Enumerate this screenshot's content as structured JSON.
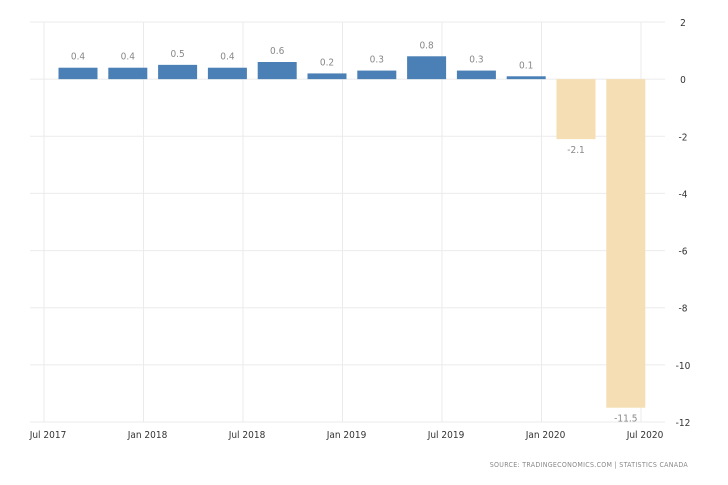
{
  "chart_data": {
    "type": "bar",
    "values": [
      0.4,
      0.4,
      0.5,
      0.4,
      0.6,
      0.2,
      0.3,
      0.8,
      0.3,
      0.1,
      -2.1,
      -11.5
    ],
    "data_labels": [
      "0.4",
      "0.4",
      "0.5",
      "0.4",
      "0.6",
      "0.2",
      "0.3",
      "0.8",
      "0.3",
      "0.1",
      "-2.1",
      "-11.5"
    ],
    "xticks": [
      "Jul 2017",
      "Jan 2018",
      "Jul 2018",
      "Jan 2019",
      "Jul 2019",
      "Jan 2020",
      "Jul 2020"
    ],
    "yticks": [
      "2",
      "0",
      "-2",
      "-4",
      "-6",
      "-8",
      "-10",
      "-12"
    ],
    "ylim": [
      -12,
      2
    ],
    "grid": true,
    "y_axis_side": "right",
    "colors": {
      "positive": "#4a80b5",
      "negative": "#f5deb3"
    }
  },
  "source": "SOURCE:  TRADINGECONOMICS.COM  |  STATISTICS CANADA"
}
